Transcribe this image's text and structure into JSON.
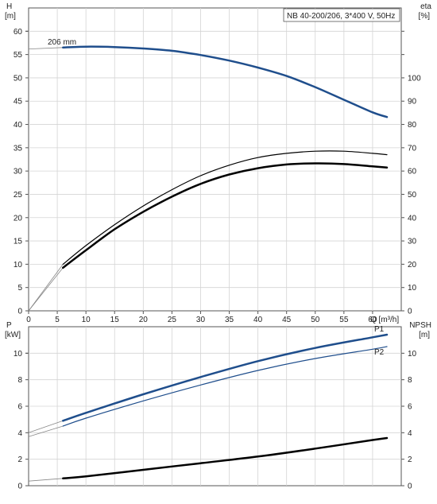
{
  "colors": {
    "grid": "#d4d4d4",
    "axis": "#555555",
    "text": "#222222",
    "blue": "#1f4e8c",
    "black": "#000000"
  },
  "chart_data": [
    {
      "type": "line",
      "title": "NB 40-200/206, 3*400 V, 50Hz",
      "xlabel": "Q [m³/h]",
      "x_ticks": [
        "0",
        "5",
        "10",
        "15",
        "20",
        "25",
        "30",
        "35",
        "40",
        "45",
        "50",
        "55",
        "60"
      ],
      "xlim": [
        0,
        65
      ],
      "left_axis": {
        "label_line1": "H",
        "label_line2": "[m]",
        "ylim": [
          0,
          65
        ],
        "ticks": [
          "0",
          "5",
          "10",
          "15",
          "20",
          "25",
          "30",
          "35",
          "40",
          "45",
          "50",
          "55",
          "60"
        ]
      },
      "right_axis": {
        "label_line1": "eta",
        "label_line2": "[%]",
        "ylim": [
          0,
          130
        ],
        "ticks": [
          "0",
          "10",
          "20",
          "30",
          "40",
          "50",
          "60",
          "70",
          "80",
          "90",
          "100"
        ]
      },
      "grid": true,
      "annotation": "206 mm",
      "series": [
        {
          "role": "head",
          "axis": "left",
          "color": "blue",
          "width": 2.5,
          "x": [
            6,
            10,
            15,
            20,
            25,
            30,
            35,
            40,
            45,
            50,
            55,
            60,
            62.5
          ],
          "y": [
            56.5,
            56.7,
            56.6,
            56.3,
            55.8,
            54.9,
            53.7,
            52.2,
            50.4,
            48.0,
            45.3,
            42.6,
            41.6
          ],
          "dashed_extension": {
            "x": [
              0,
              6
            ],
            "y": [
              56.2,
              56.5
            ]
          }
        },
        {
          "role": "efficiency-thin",
          "axis": "right",
          "color": "black",
          "width": 1.2,
          "x": [
            6,
            10,
            15,
            20,
            25,
            30,
            35,
            40,
            45,
            50,
            55,
            60,
            62.5
          ],
          "y": [
            20,
            28,
            37,
            45,
            52,
            58,
            62.5,
            65.8,
            67.6,
            68.5,
            68.5,
            67.6,
            67.0
          ],
          "dashed_extension": {
            "x": [
              0,
              6
            ],
            "y": [
              0,
              20
            ]
          }
        },
        {
          "role": "efficiency-thick",
          "axis": "right",
          "color": "black",
          "width": 2.5,
          "x": [
            6,
            10,
            15,
            20,
            25,
            30,
            35,
            40,
            45,
            50,
            55,
            60,
            62.5
          ],
          "y": [
            18.5,
            26,
            35,
            42.5,
            49,
            54.5,
            58.5,
            61.2,
            62.8,
            63.3,
            63.0,
            62.0,
            61.5
          ],
          "dashed_extension": {
            "x": [
              0,
              6
            ],
            "y": [
              0,
              18.5
            ]
          }
        }
      ]
    },
    {
      "type": "line",
      "xlim": [
        0,
        65
      ],
      "left_axis": {
        "label_line1": "P",
        "label_line2": "[kW]",
        "ylim": [
          0,
          12
        ],
        "ticks": [
          "0",
          "2",
          "4",
          "6",
          "8",
          "10"
        ]
      },
      "right_axis": {
        "label_line1": "NPSH",
        "label_line2": "[m]",
        "ylim": [
          0,
          12
        ],
        "ticks": [
          "0",
          "2",
          "4",
          "6",
          "8",
          "10"
        ]
      },
      "grid": true,
      "series": [
        {
          "name": "P1",
          "axis": "left",
          "color": "blue",
          "width": 2.5,
          "x": [
            6,
            10,
            20,
            30,
            40,
            50,
            60,
            62.5
          ],
          "y": [
            4.9,
            5.5,
            6.9,
            8.2,
            9.4,
            10.4,
            11.2,
            11.4
          ],
          "dashed_extension": {
            "x": [
              0,
              6
            ],
            "y": [
              4.0,
              4.9
            ]
          }
        },
        {
          "name": "P2",
          "axis": "left",
          "color": "blue",
          "width": 1.2,
          "x": [
            6,
            10,
            20,
            30,
            40,
            50,
            60,
            62.5
          ],
          "y": [
            4.5,
            5.1,
            6.4,
            7.6,
            8.7,
            9.6,
            10.3,
            10.5
          ],
          "dashed_extension": {
            "x": [
              0,
              6
            ],
            "y": [
              3.7,
              4.5
            ]
          }
        },
        {
          "role": "npsh",
          "axis": "right",
          "color": "black",
          "width": 2.5,
          "x": [
            6,
            10,
            20,
            30,
            40,
            50,
            60,
            62.5
          ],
          "y": [
            0.55,
            0.7,
            1.2,
            1.7,
            2.2,
            2.8,
            3.45,
            3.6
          ],
          "dashed_extension": {
            "x": [
              0,
              6
            ],
            "y": [
              0.35,
              0.55
            ]
          }
        }
      ]
    }
  ]
}
